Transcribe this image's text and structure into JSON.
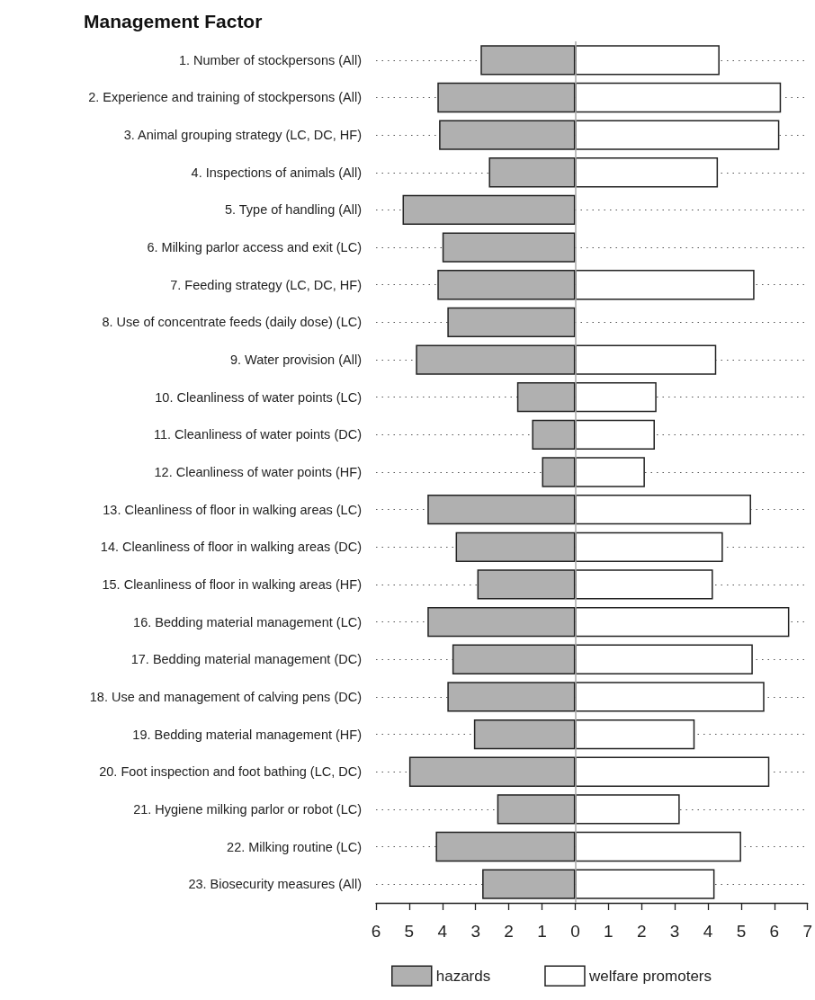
{
  "chart_data": {
    "type": "bar",
    "orientation": "horizontal",
    "title": "Management Factor",
    "categories": [
      "1. Number of stockpersons (All)",
      "2. Experience and training of stockpersons (All)",
      "3. Animal grouping strategy (LC, DC, HF)",
      "4. Inspections of animals (All)",
      "5. Type of handling (All)",
      "6. Milking parlor access and exit (LC)",
      "7. Feeding strategy (LC, DC, HF)",
      "8. Use of concentrate feeds (daily dose) (LC)",
      "9. Water provision (All)",
      "10. Cleanliness of water points (LC)",
      "11. Cleanliness of water points (DC)",
      "12. Cleanliness of water points (HF)",
      "13. Cleanliness of floor in walking areas (LC)",
      "14. Cleanliness of floor in walking areas (DC)",
      "15. Cleanliness of floor in walking areas (HF)",
      "16. Bedding material management (LC)",
      "17. Bedding material management (DC)",
      "18. Use and management of calving pens (DC)",
      "19. Bedding material management (HF)",
      "20. Foot inspection and foot bathing (LC, DC)",
      "21. Hygiene milking parlor or robot (LC)",
      "22. Milking routine (LC)",
      "23. Biosecurity measures (All)"
    ],
    "series": [
      {
        "name": "hazards",
        "color": "#b0b0b0",
        "values": [
          -2.85,
          -4.15,
          -4.1,
          -2.6,
          -5.2,
          -4.0,
          -4.15,
          -3.85,
          -4.8,
          -1.75,
          -1.3,
          -1.0,
          -4.45,
          -3.6,
          -2.95,
          -4.45,
          -3.7,
          -3.85,
          -3.05,
          -5.0,
          -2.35,
          -4.2,
          -2.8
        ]
      },
      {
        "name": "welfare promoters",
        "color": "#ffffff",
        "values": [
          4.35,
          6.2,
          6.15,
          4.3,
          null,
          null,
          5.4,
          null,
          4.25,
          2.45,
          2.4,
          2.1,
          5.3,
          4.45,
          4.15,
          6.45,
          5.35,
          5.7,
          3.6,
          5.85,
          3.15,
          5.0,
          4.2
        ]
      }
    ],
    "xlim": [
      -6,
      7
    ],
    "xticks": [
      {
        "value": -6,
        "label": "6"
      },
      {
        "value": -5,
        "label": "5"
      },
      {
        "value": -4,
        "label": "4"
      },
      {
        "value": -3,
        "label": "3"
      },
      {
        "value": -2,
        "label": "2"
      },
      {
        "value": -1,
        "label": "1"
      },
      0,
      1,
      2,
      3,
      4,
      5,
      6,
      7
    ],
    "ref_lines": [
      {
        "axis": "x",
        "value": 0,
        "color": "#a8a8a8"
      }
    ],
    "stacked": true,
    "grid": "y",
    "legend": "bottom"
  }
}
